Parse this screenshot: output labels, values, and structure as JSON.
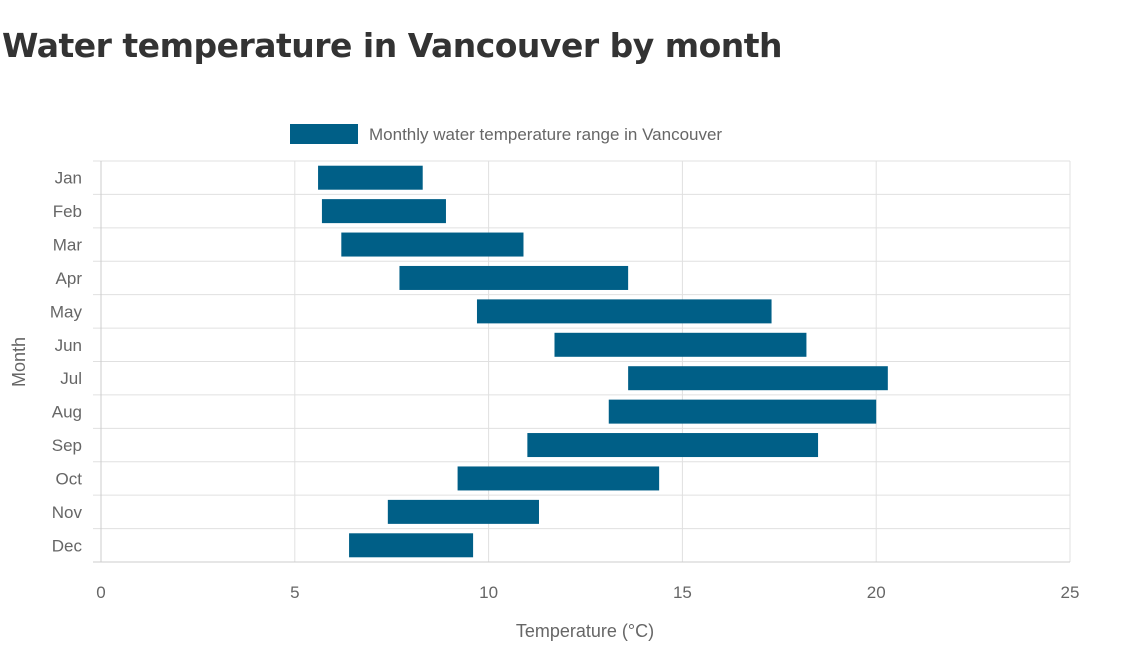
{
  "chart_data": {
    "type": "bar",
    "orientation": "horizontal-floating",
    "title": "Water temperature in Vancouver by month",
    "xlabel": "Temperature (°C)",
    "ylabel": "Month",
    "xlim": [
      0,
      25
    ],
    "xticks": [
      0,
      5,
      10,
      15,
      20,
      25
    ],
    "grid": true,
    "legend_position": "top",
    "categories": [
      "Jan",
      "Feb",
      "Mar",
      "Apr",
      "May",
      "Jun",
      "Jul",
      "Aug",
      "Sep",
      "Oct",
      "Nov",
      "Dec"
    ],
    "series": [
      {
        "name": "Monthly water temperature range in Vancouver",
        "color": "#005f87",
        "values": [
          [
            5.6,
            8.3
          ],
          [
            5.7,
            8.9
          ],
          [
            6.2,
            10.9
          ],
          [
            7.7,
            13.6
          ],
          [
            9.7,
            17.3
          ],
          [
            11.7,
            18.2
          ],
          [
            13.6,
            20.3
          ],
          [
            13.1,
            20.0
          ],
          [
            11.0,
            18.5
          ],
          [
            9.2,
            14.4
          ],
          [
            7.4,
            11.3
          ],
          [
            6.4,
            9.6
          ]
        ]
      }
    ]
  }
}
